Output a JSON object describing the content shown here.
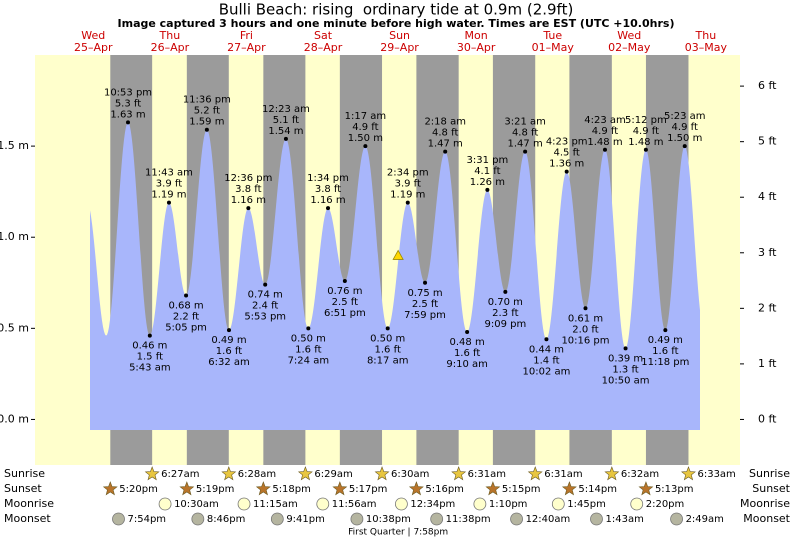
{
  "title": "Bulli Beach: rising  ordinary tide at 0.9m (2.9ft)",
  "subtitle": "Image captured 3 hours and one minute before high water. Times are EST (UTC +10.0hrs)",
  "chart_data": {
    "type": "area",
    "days": [
      {
        "name": "Wed",
        "date": "25–Apr"
      },
      {
        "name": "Thu",
        "date": "26–Apr"
      },
      {
        "name": "Fri",
        "date": "27–Apr"
      },
      {
        "name": "Sat",
        "date": "28–Apr"
      },
      {
        "name": "Sun",
        "date": "29–Apr"
      },
      {
        "name": "Mon",
        "date": "30–Apr"
      },
      {
        "name": "Tue",
        "date": "01–May"
      },
      {
        "name": "Wed",
        "date": "02–May"
      },
      {
        "name": "Thu",
        "date": "03–May"
      }
    ],
    "x": [
      22.88,
      29.72,
      35.72,
      41.08,
      47.6,
      54.53,
      60.6,
      65.88,
      72.38,
      79.4,
      85.57,
      90.85,
      97.28,
      104.28,
      110.57,
      115.98,
      122.3,
      129.17,
      135.52,
      141.15,
      147.35,
      154.03,
      160.38,
      166.27,
      172.38,
      178.83,
      185.2,
      191.3,
      197.38
    ],
    "values": [
      1.63,
      0.46,
      1.19,
      0.68,
      1.59,
      0.49,
      1.16,
      0.74,
      1.54,
      0.5,
      1.16,
      0.76,
      1.5,
      0.5,
      1.19,
      0.75,
      1.47,
      0.48,
      1.26,
      0.7,
      1.47,
      0.44,
      1.36,
      0.61,
      1.48,
      0.39,
      1.48,
      0.49,
      1.5
    ],
    "value_labels": [
      "1.63 m",
      "0.46 m",
      "1.19 m",
      "0.68 m",
      "1.59 m",
      "0.49 m",
      "1.16 m",
      "0.74 m",
      "1.54 m",
      "0.50 m",
      "1.16 m",
      "0.76 m",
      "1.50 m",
      "0.50 m",
      "1.19 m",
      "0.75 m",
      "1.47 m",
      "0.48 m",
      "1.26 m",
      "0.70 m",
      "1.47 m",
      "0.44 m",
      "1.36 m",
      "0.61 m",
      "1.48 m",
      "0.39 m",
      "1.48 m",
      "0.49 m",
      "1.50 m"
    ],
    "ft_labels": [
      "5.3 ft",
      "1.5 ft",
      "3.9 ft",
      "2.2 ft",
      "5.2 ft",
      "1.6 ft",
      "3.8 ft",
      "2.4 ft",
      "5.1 ft",
      "1.6 ft",
      "3.8 ft",
      "2.5 ft",
      "4.9 ft",
      "1.6 ft",
      "3.9 ft",
      "2.5 ft",
      "4.8 ft",
      "1.6 ft",
      "4.1 ft",
      "2.3 ft",
      "4.8 ft",
      "1.4 ft",
      "4.5 ft",
      "2.0 ft",
      "4.9 ft",
      "1.3 ft",
      "4.9 ft",
      "1.6 ft",
      "4.9 ft"
    ],
    "time_labels": [
      "10:53 pm",
      "5:43 am",
      "11:43 am",
      "5:05 pm",
      "11:36 pm",
      "6:32 am",
      "12:36 pm",
      "5:53 pm",
      "12:23 am",
      "7:24 am",
      "1:34 pm",
      "6:51 pm",
      "1:17 am",
      "8:17 am",
      "2:34 pm",
      "7:59 pm",
      "2:18 am",
      "9:10 am",
      "3:31 pm",
      "9:09 pm",
      "3:21 am",
      "10:02 am",
      "4:23 pm",
      "10:16 pm",
      "4:23 am",
      "10:50 am",
      "5:12 pm",
      "11:18 pm",
      "5:23 am"
    ],
    "xlim": [
      -6.27,
      214.7
    ],
    "ylim": [
      -0.25,
      2.0
    ],
    "yticks": [
      {
        "value": 0,
        "label": "0.0 m"
      },
      {
        "value": 0.5,
        "label": "0.5 m"
      },
      {
        "value": 1,
        "label": "1.0 m"
      },
      {
        "value": 1.5,
        "label": "1.5 m"
      }
    ],
    "y2lim": [
      -0.82,
      6.56
    ],
    "y2ticks": [
      {
        "value": 0,
        "label": "0 ft"
      },
      {
        "value": 1,
        "label": "1 ft"
      },
      {
        "value": 2,
        "label": "2 ft"
      },
      {
        "value": 3,
        "label": "3 ft"
      },
      {
        "value": 4,
        "label": "4 ft"
      },
      {
        "value": 5,
        "label": "5 ft"
      },
      {
        "value": 6,
        "label": "6 ft"
      }
    ],
    "current": {
      "x": 107.55,
      "value": 0.9
    },
    "fill_color": "#a8b6fb",
    "night_color": "#9b9b9b",
    "day_color": "#ffffcc",
    "day_label_color": "#cc0000"
  },
  "sun_moon": {
    "rows": [
      "Sunrise",
      "Sunset",
      "Moonrise",
      "Moonset"
    ],
    "sunrise": {
      "x": [
        30.45,
        54.47,
        78.48,
        102.5,
        126.52,
        150.52,
        174.53,
        198.55
      ],
      "labels": [
        "6:27am",
        "6:28am",
        "6:29am",
        "6:30am",
        "6:31am",
        "6:31am",
        "6:32am",
        "6:33am"
      ]
    },
    "sunset": {
      "x": [
        17.33,
        41.32,
        65.3,
        89.28,
        113.27,
        137.25,
        161.23,
        185.22
      ],
      "labels": [
        "5:20pm",
        "5:19pm",
        "5:18pm",
        "5:17pm",
        "5:16pm",
        "5:15pm",
        "5:14pm",
        "5:13pm"
      ]
    },
    "moonrise": {
      "x": [
        34.5,
        59.25,
        83.93,
        108.57,
        133.17,
        157.75,
        182.33
      ],
      "labels": [
        "10:30am",
        "11:15am",
        "11:56am",
        "12:34pm",
        "1:10pm",
        "1:45pm",
        "2:20pm"
      ]
    },
    "moonset": {
      "x": [
        19.9,
        44.77,
        69.68,
        94.63,
        119.63,
        144.67,
        169.72,
        194.82
      ],
      "labels": [
        "7:54pm",
        "8:46pm",
        "9:41pm",
        "10:38pm",
        "11:38pm",
        "12:40am",
        "1:43am",
        "2:49am"
      ]
    },
    "phase": "First Quarter | 7:58pm"
  }
}
